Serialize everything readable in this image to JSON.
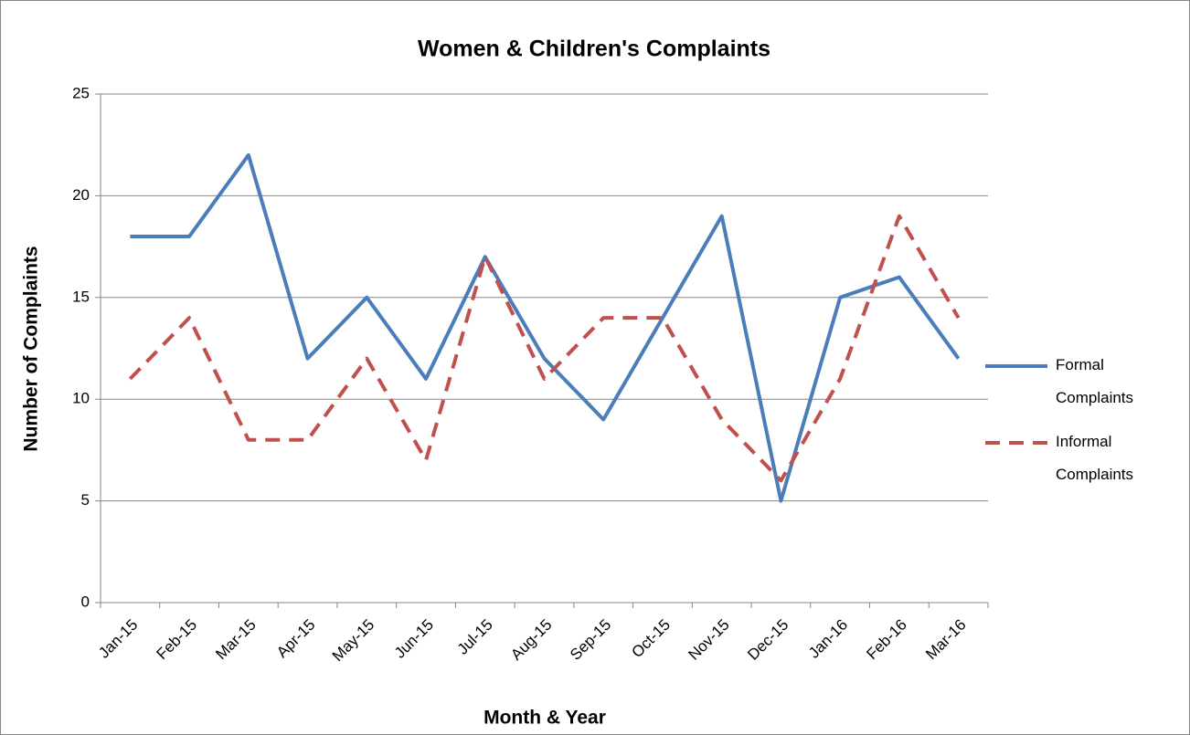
{
  "chart_data": {
    "type": "line",
    "title": "Women & Children's Complaints",
    "x_label": "Month & Year",
    "y_label": "Number of Complaints",
    "categories": [
      "Jan-15",
      "Feb-15",
      "Mar-15",
      "Apr-15",
      "May-15",
      "Jun-15",
      "Jul-15",
      "Aug-15",
      "Sep-15",
      "Oct-15",
      "Nov-15",
      "Dec-15",
      "Jan-16",
      "Feb-16",
      "Mar-16"
    ],
    "series": [
      {
        "name": "Formal Complaints",
        "color": "#4a7ebb",
        "dash": false,
        "values": [
          18,
          18,
          22,
          12,
          15,
          11,
          17,
          12,
          9,
          14,
          19,
          5,
          15,
          16,
          12
        ]
      },
      {
        "name": "Informal Complaints",
        "color": "#c0504d",
        "dash": true,
        "values": [
          11,
          14,
          8,
          8,
          12,
          7,
          17,
          11,
          14,
          14,
          9,
          6,
          11,
          19,
          14
        ]
      }
    ],
    "ylim": [
      0,
      25
    ],
    "yticks": [
      0,
      5,
      10,
      15,
      20,
      25
    ],
    "grid": true,
    "legend": "right"
  }
}
